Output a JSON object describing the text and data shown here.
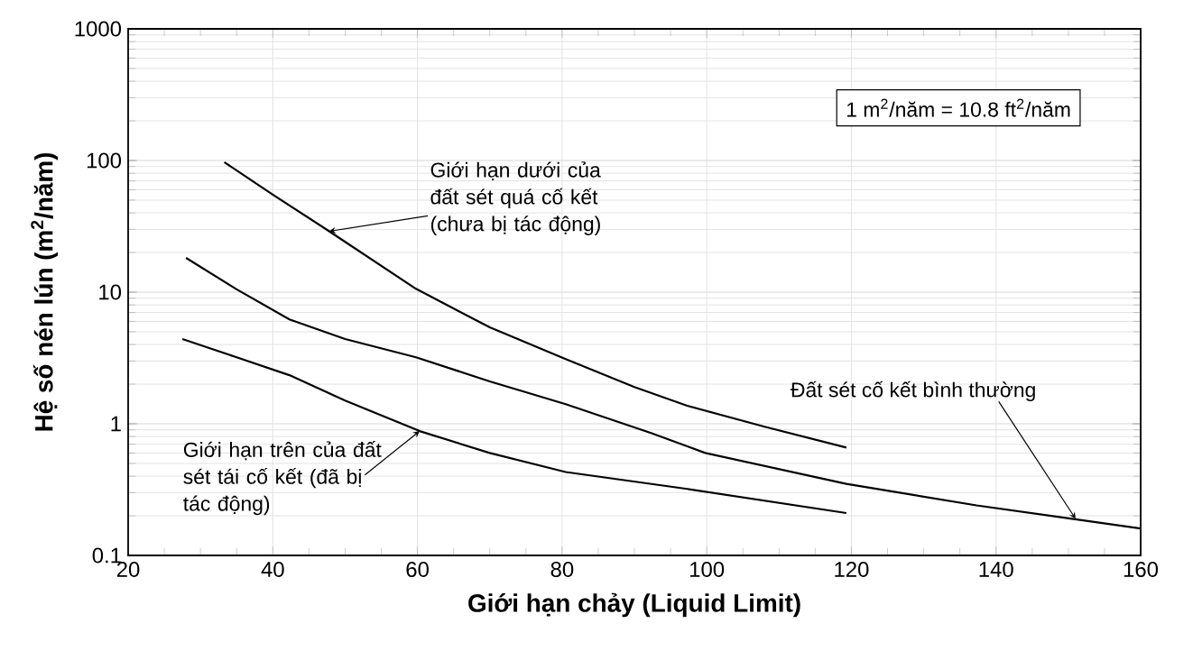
{
  "chart_data": {
    "type": "line",
    "xlabel": "Giới hạn chảy (Liquid Limit)",
    "ylabel": "Hệ số nén lún (m$^{2}$/năm)",
    "xlim": [
      20,
      160
    ],
    "ylim": [
      0.1,
      1000
    ],
    "xticks": [
      20,
      40,
      60,
      80,
      100,
      120,
      140,
      160
    ],
    "yticks": [
      0.1,
      1,
      10,
      100,
      1000
    ],
    "log": "y",
    "grid": true,
    "line_style": "solid",
    "series": [
      {
        "color": "#000000",
        "x": [
          33.3,
          40,
          47.8,
          59.8,
          70,
          80.5,
          90,
          97.3,
          108,
          119.3
        ],
        "values": [
          97,
          55,
          29,
          10.6,
          5.4,
          3.1,
          1.9,
          1.37,
          0.95,
          0.66
        ]
      },
      {
        "color": "#000000",
        "x": [
          28,
          35,
          42.3,
          50,
          59.8,
          70,
          80.5,
          92.3,
          99.8,
          119.3,
          137.3,
          150.5,
          160
        ],
        "values": [
          18.2,
          10.5,
          6.2,
          4.4,
          3.2,
          2.1,
          1.41,
          0.85,
          0.6,
          0.35,
          0.24,
          0.19,
          0.16
        ]
      },
      {
        "color": "#000000",
        "x": [
          27.5,
          35,
          42.3,
          50,
          60.3,
          70,
          80.5,
          97.3,
          119.3
        ],
        "values": [
          4.4,
          3.2,
          2.34,
          1.5,
          0.88,
          0.6,
          0.43,
          0.32,
          0.21
        ]
      }
    ],
    "annotations": [
      {
        "text": "Giới hạn dưới của đất sét quá cố kết (chưa bị tác động)",
        "x": 47.8,
        "y": 29
      },
      {
        "text": "Giới hạn trên của đất sét tái cố kết (đã bị tác động)",
        "x": 60.3,
        "y": 0.88
      },
      {
        "text": "Đất sét cố kết bình thường",
        "x": 151,
        "y": 0.19
      },
      "1 m$^{2}$/năm = 10.8 ft$^{2}$/năm"
    ]
  }
}
